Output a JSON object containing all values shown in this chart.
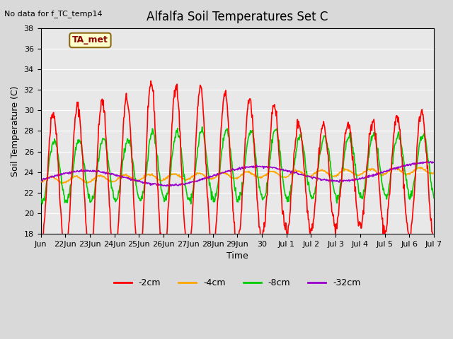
{
  "title": "Alfalfa Soil Temperatures Set C",
  "no_data_text": "No data for f_TC_temp14",
  "ylabel": "Soil Temperature (C)",
  "xlabel": "Time",
  "ylim": [
    18,
    38
  ],
  "background_color": "#d9d9d9",
  "plot_bg_color": "#e8e8e8",
  "series": {
    "-2cm": {
      "color": "#ff0000",
      "linewidth": 1.2
    },
    "-4cm": {
      "color": "#ffa500",
      "linewidth": 1.2
    },
    "-8cm": {
      "color": "#00cc00",
      "linewidth": 1.2
    },
    "-32cm": {
      "color": "#9900cc",
      "linewidth": 1.2
    }
  },
  "x_tick_labels": [
    "Jun",
    "22Jun",
    "23Jun",
    "24Jun",
    "25Jun",
    "26Jun",
    "27Jun",
    "28Jun",
    "29Jun",
    "30",
    "Jul 1",
    "Jul 2",
    "Jul 3",
    "Jul 4",
    "Jul 5",
    "Jul 6",
    "Jul 7"
  ],
  "annotation": {
    "text": "TA_met",
    "color": "#8b0000",
    "bg": "#ffffcc",
    "border": "#8b6914"
  }
}
